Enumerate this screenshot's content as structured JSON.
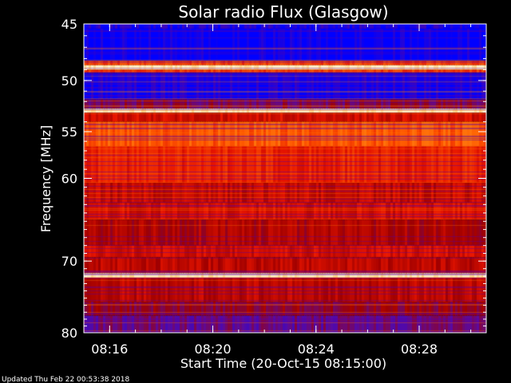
{
  "page": {
    "background": "#000000"
  },
  "chart_data": {
    "type": "heatmap",
    "title": "Solar radio Flux (Glasgow)",
    "xlabel": "Start Time (20-Oct-15 08:15:00)",
    "ylabel": "Frequency [MHz]",
    "x_unit": "minutes",
    "x_start": "08:15:00",
    "xlim": [
      0,
      15.6
    ],
    "ylim": [
      45,
      80
    ],
    "y_scale": "log",
    "grid": false,
    "x_ticks": [
      {
        "value": 1,
        "label": "08:16"
      },
      {
        "value": 5,
        "label": "08:20"
      },
      {
        "value": 9,
        "label": "08:24"
      },
      {
        "value": 13,
        "label": "08:28"
      }
    ],
    "y_ticks": [
      {
        "value": 45,
        "label": "45"
      },
      {
        "value": 50,
        "label": "50"
      },
      {
        "value": 55,
        "label": "55"
      },
      {
        "value": 60,
        "label": "60"
      },
      {
        "value": 70,
        "label": "70"
      },
      {
        "value": 80,
        "label": "80"
      }
    ],
    "colormap": [
      "#0000ff",
      "#5a0aa0",
      "#a00000",
      "#e61400",
      "#ff5a00",
      "#ffaa28",
      "#fff0c8"
    ],
    "frequency_bands": [
      {
        "from": 45.0,
        "to": 45.4,
        "intensity": 0.05
      },
      {
        "from": 45.4,
        "to": 48.2,
        "intensity": 0.0
      },
      {
        "from": 48.2,
        "to": 48.6,
        "intensity": 0.6
      },
      {
        "from": 48.6,
        "to": 49.0,
        "intensity": 1.0
      },
      {
        "from": 49.0,
        "to": 49.3,
        "intensity": 0.6
      },
      {
        "from": 49.3,
        "to": 51.8,
        "intensity": 0.02
      },
      {
        "from": 51.8,
        "to": 52.7,
        "intensity": 0.25
      },
      {
        "from": 52.7,
        "to": 53.1,
        "intensity": 1.0
      },
      {
        "from": 53.1,
        "to": 54.0,
        "intensity": 0.45
      },
      {
        "from": 54.0,
        "to": 56.5,
        "intensity": 0.65
      },
      {
        "from": 56.5,
        "to": 60.5,
        "intensity": 0.52
      },
      {
        "from": 60.5,
        "to": 62.8,
        "intensity": 0.42
      },
      {
        "from": 62.8,
        "to": 64.8,
        "intensity": 0.46
      },
      {
        "from": 64.8,
        "to": 68.0,
        "intensity": 0.36
      },
      {
        "from": 68.0,
        "to": 69.5,
        "intensity": 0.45
      },
      {
        "from": 69.5,
        "to": 71.6,
        "intensity": 0.4
      },
      {
        "from": 71.6,
        "to": 72.2,
        "intensity": 1.0
      },
      {
        "from": 72.2,
        "to": 75.5,
        "intensity": 0.4
      },
      {
        "from": 75.5,
        "to": 77.5,
        "intensity": 0.3
      },
      {
        "from": 77.5,
        "to": 80.0,
        "intensity": 0.2
      }
    ]
  },
  "footer": {
    "updated": "Updated Thu Feb 22 00:53:38 2018"
  }
}
